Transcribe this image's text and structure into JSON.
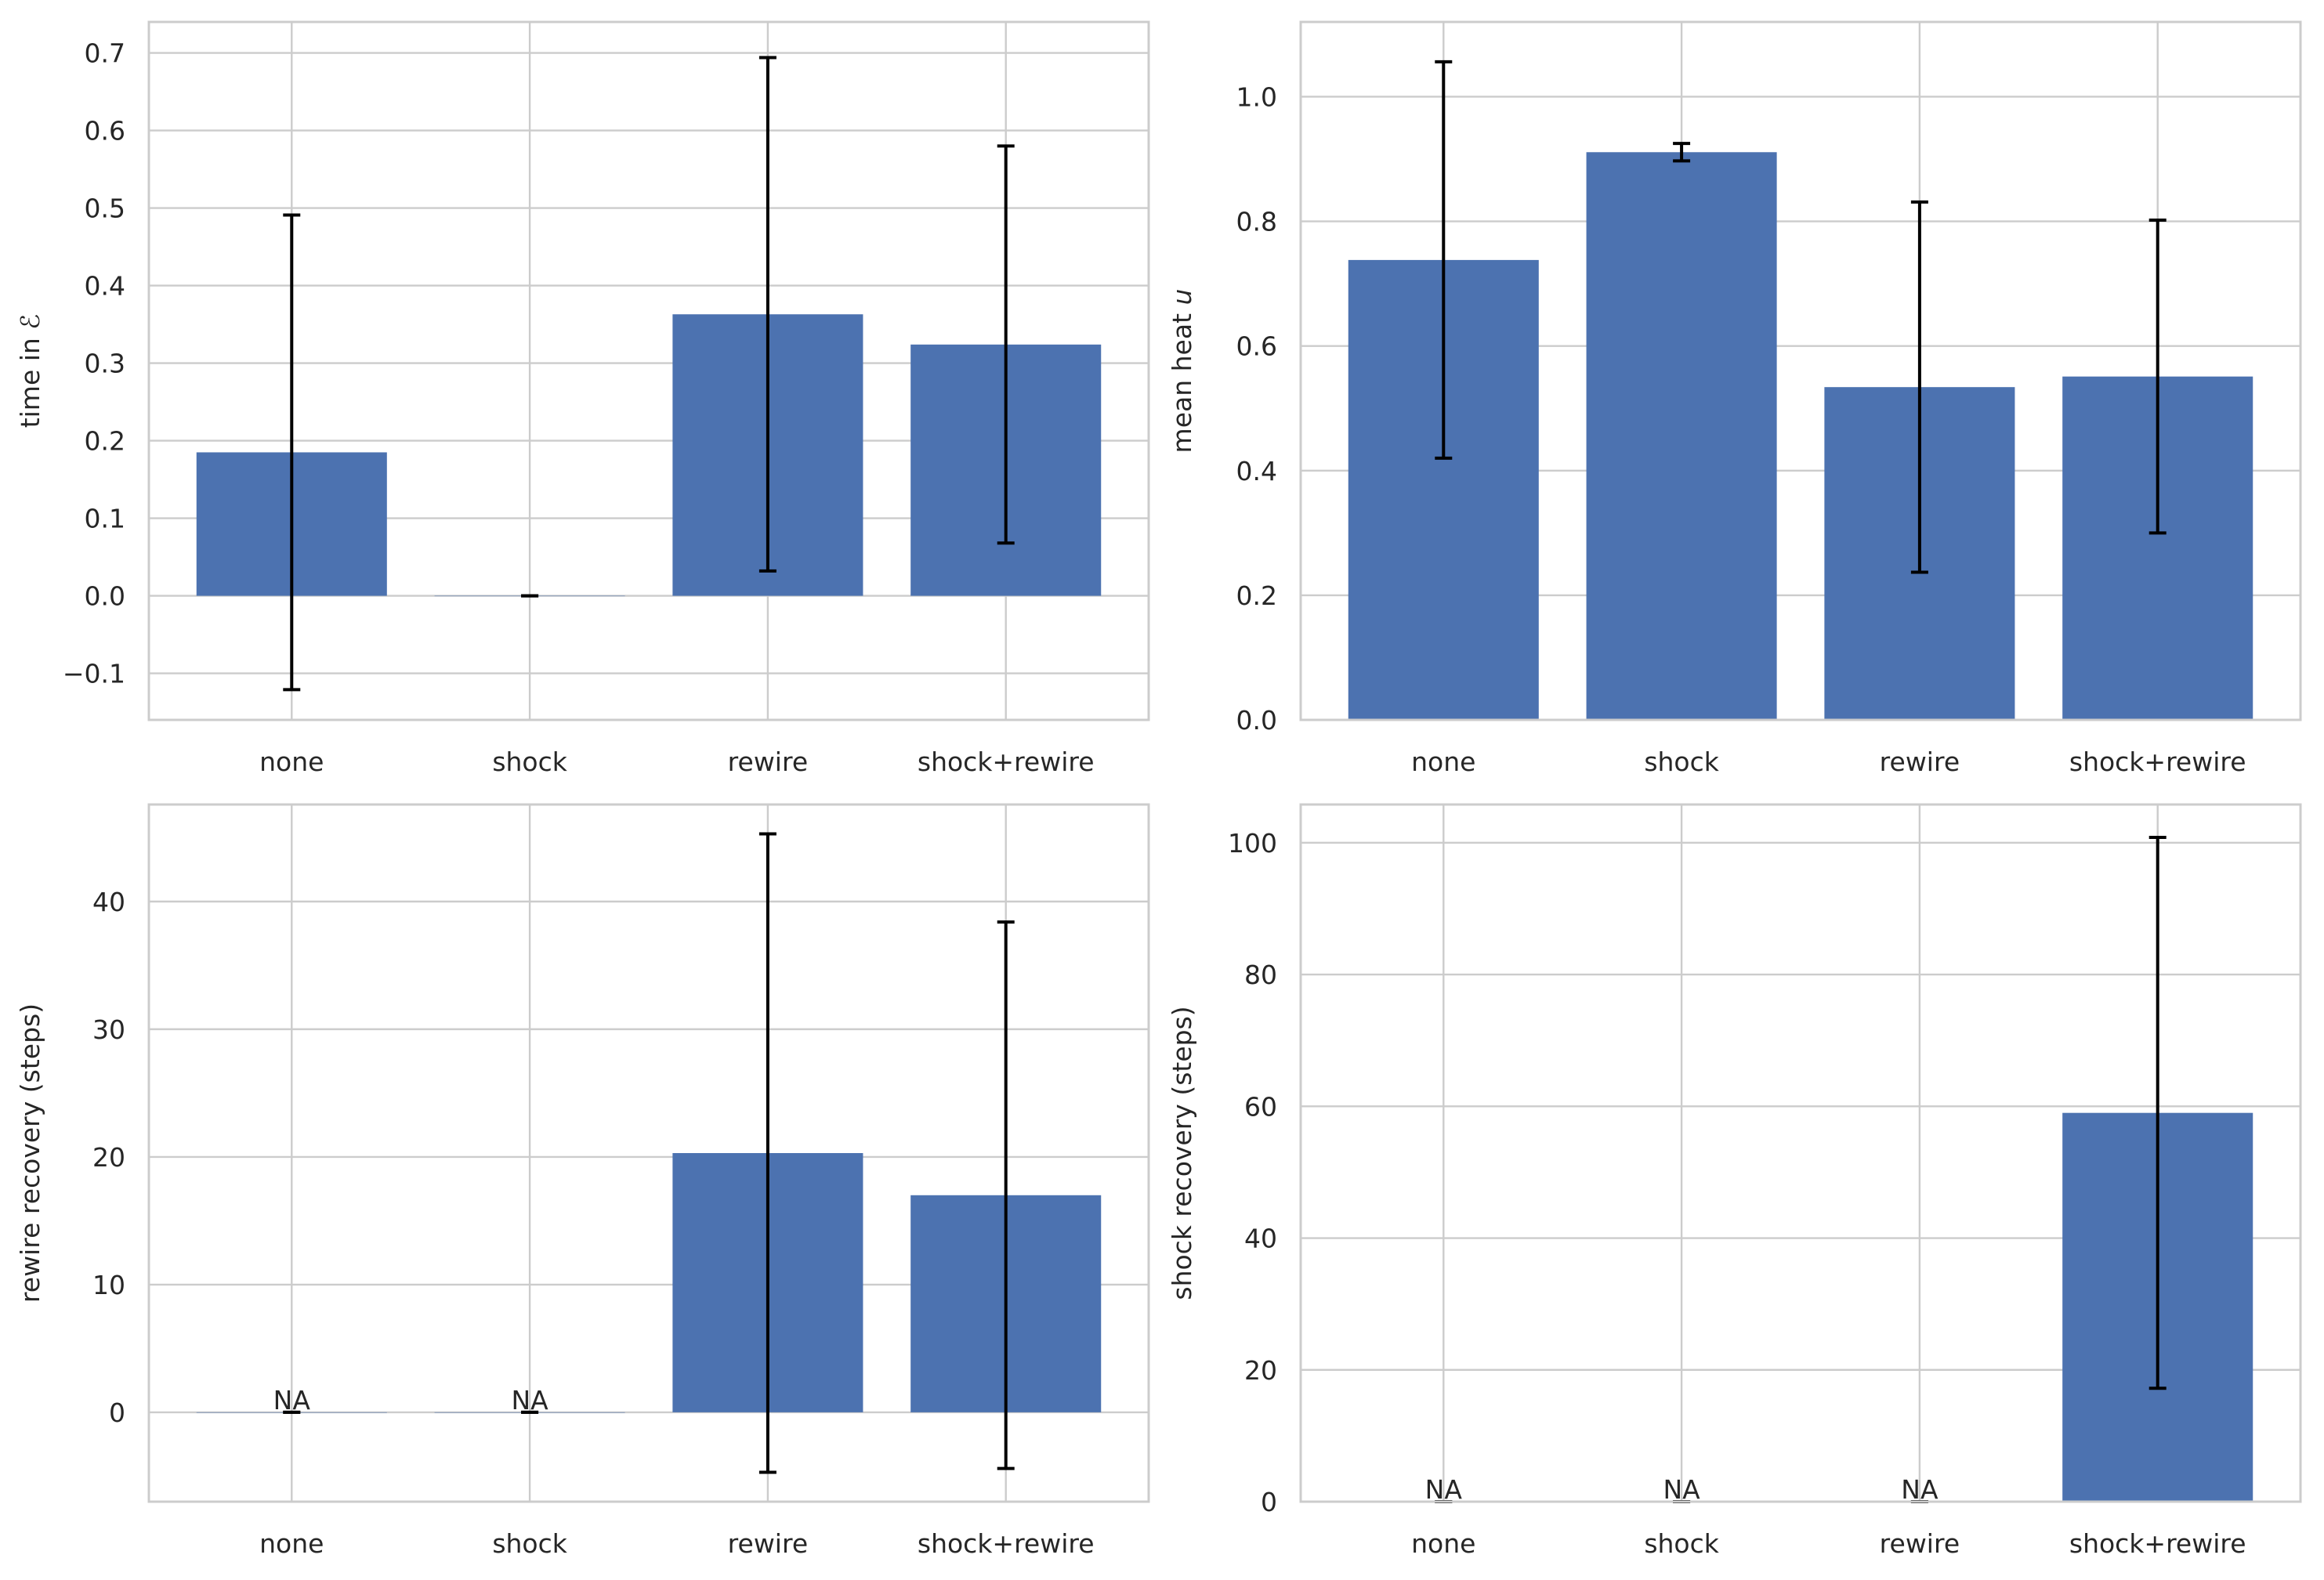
{
  "colors": {
    "bar": "#4c72b0",
    "grid": "#cccccc",
    "spine": "#cccccc",
    "errorbar": "#000000",
    "text": "#262626",
    "background": "#ffffff"
  },
  "chart_data": [
    {
      "type": "bar",
      "position": "top-left",
      "categories": [
        "none",
        "shock",
        "rewire",
        "shock+rewire"
      ],
      "values": [
        0.185,
        0.0,
        0.363,
        0.324
      ],
      "errors": [
        0.306,
        0.0,
        0.331,
        0.256
      ],
      "ylabel": "time in ℰ",
      "ylim": [
        -0.16,
        0.74
      ],
      "yticks": [
        -0.1,
        0.0,
        0.1,
        0.2,
        0.3,
        0.4,
        0.5,
        0.6,
        0.7
      ],
      "ytick_labels": [
        "−0.1",
        "0.0",
        "0.1",
        "0.2",
        "0.3",
        "0.4",
        "0.5",
        "0.6",
        "0.7"
      ],
      "bar_labels": [
        "",
        "",
        "",
        ""
      ],
      "grid": true
    },
    {
      "type": "bar",
      "position": "top-right",
      "categories": [
        "none",
        "shock",
        "rewire",
        "shock+rewire"
      ],
      "values": [
        0.738,
        0.911,
        0.534,
        0.551
      ],
      "errors": [
        0.318,
        0.014,
        0.297,
        0.251
      ],
      "ylabel": "mean heat u",
      "ylim": [
        0.0,
        1.12
      ],
      "yticks": [
        0.0,
        0.2,
        0.4,
        0.6,
        0.8,
        1.0
      ],
      "ytick_labels": [
        "0.0",
        "0.2",
        "0.4",
        "0.6",
        "0.8",
        "1.0"
      ],
      "bar_labels": [
        "",
        "",
        "",
        ""
      ],
      "grid": true
    },
    {
      "type": "bar",
      "position": "bottom-left",
      "categories": [
        "none",
        "shock",
        "rewire",
        "shock+rewire"
      ],
      "values": [
        0.0,
        0.0,
        20.3,
        17.0
      ],
      "errors": [
        0.0,
        0.0,
        25.0,
        21.4
      ],
      "ylabel": "rewire recovery (steps)",
      "ylim": [
        -7.0,
        47.6
      ],
      "yticks": [
        0,
        10,
        20,
        30,
        40
      ],
      "ytick_labels": [
        "0",
        "10",
        "20",
        "30",
        "40"
      ],
      "bar_labels": [
        "NA",
        "NA",
        "",
        ""
      ],
      "grid": true
    },
    {
      "type": "bar",
      "position": "bottom-right",
      "categories": [
        "none",
        "shock",
        "rewire",
        "shock+rewire"
      ],
      "values": [
        0.0,
        0.0,
        0.0,
        59.0
      ],
      "errors": [
        0.0,
        0.0,
        0.0,
        41.8
      ],
      "ylabel": "shock recovery (steps)",
      "ylim": [
        0.0,
        105.8
      ],
      "yticks": [
        0,
        20,
        40,
        60,
        80,
        100
      ],
      "ytick_labels": [
        "0",
        "20",
        "40",
        "60",
        "80",
        "100"
      ],
      "bar_labels": [
        "NA",
        "NA",
        "NA",
        ""
      ],
      "grid": true
    }
  ]
}
